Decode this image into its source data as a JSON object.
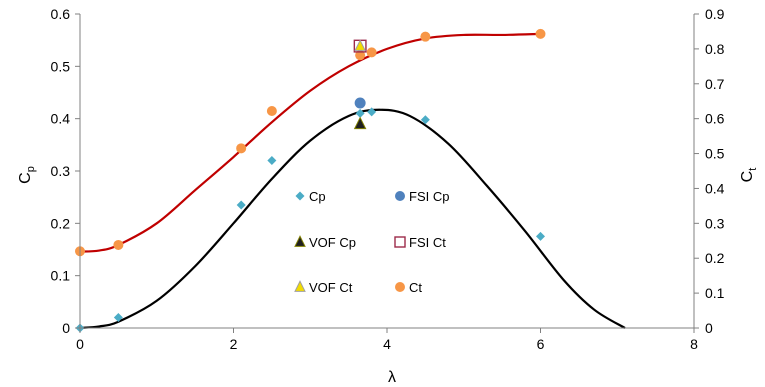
{
  "chart_data": {
    "type": "scatter",
    "xlabel": "λ",
    "ylabel_left": {
      "main": "C",
      "sub": "p"
    },
    "ylabel_right": {
      "main": "C",
      "sub": "t"
    },
    "xlim": [
      0,
      8
    ],
    "xticks": [
      "0",
      "2",
      "4",
      "6",
      "8"
    ],
    "ylim_left": [
      0,
      0.6
    ],
    "yticks_left": [
      "0",
      "0.1",
      "0.2",
      "0.3",
      "0.4",
      "0.5",
      "0.6"
    ],
    "ylim_right": [
      0,
      0.9
    ],
    "yticks_right": [
      "0",
      "0.1",
      "0.2",
      "0.3",
      "0.4",
      "0.5",
      "0.6",
      "0.7",
      "0.8",
      "0.9"
    ],
    "grid": false,
    "legend_position": "center",
    "series": [
      {
        "name": "Cp",
        "axis": "left",
        "marker": "diamond",
        "color": "#4BACC6",
        "x": [
          0,
          0.5,
          2.1,
          2.5,
          3.65,
          3.8,
          4.5,
          6.0
        ],
        "y": [
          0,
          0.02,
          0.235,
          0.32,
          0.41,
          0.413,
          0.398,
          0.175
        ]
      },
      {
        "name": "FSI Cp",
        "axis": "left",
        "marker": "circle",
        "color": "#4F81BD",
        "x": [
          3.65
        ],
        "y": [
          0.43
        ]
      },
      {
        "name": "VOF Cp",
        "axis": "left",
        "marker": "triangle",
        "color": "#1F1F1F",
        "x": [
          3.65
        ],
        "y": [
          0.39
        ]
      },
      {
        "name": "FSI Ct",
        "axis": "right",
        "marker": "square",
        "color": "#9C2A4A",
        "x": [
          3.65
        ],
        "y": [
          0.808
        ]
      },
      {
        "name": "VOF Ct",
        "axis": "right",
        "marker": "triangle",
        "color": "#F2DC00",
        "x": [
          3.65
        ],
        "y": [
          0.808
        ]
      },
      {
        "name": "Ct",
        "axis": "right",
        "marker": "circle",
        "color": "#F79646",
        "x": [
          0,
          0.5,
          2.1,
          2.5,
          3.65,
          3.8,
          4.5,
          6.0
        ],
        "y": [
          0.22,
          0.238,
          0.515,
          0.622,
          0.782,
          0.79,
          0.835,
          0.843
        ]
      }
    ],
    "curves": [
      {
        "name": "Cp fit",
        "axis": "left",
        "color": "#000000",
        "x": [
          0,
          0.25,
          0.5,
          1.0,
          1.5,
          2.0,
          2.5,
          3.0,
          3.5,
          3.9,
          4.3,
          4.8,
          5.3,
          5.8,
          6.3,
          6.7,
          7.1
        ],
        "y": [
          0,
          0.003,
          0.012,
          0.052,
          0.118,
          0.2,
          0.285,
          0.358,
          0.405,
          0.417,
          0.405,
          0.352,
          0.272,
          0.185,
          0.092,
          0.035,
          0
        ]
      },
      {
        "name": "Ct fit",
        "axis": "right",
        "color": "#C00000",
        "x": [
          0,
          0.25,
          0.5,
          1.0,
          1.5,
          2.0,
          2.5,
          3.0,
          3.5,
          4.0,
          4.5,
          5.0,
          5.5,
          6.0
        ],
        "y": [
          0.219,
          0.222,
          0.238,
          0.3,
          0.395,
          0.49,
          0.59,
          0.68,
          0.75,
          0.8,
          0.83,
          0.84,
          0.84,
          0.843
        ]
      }
    ]
  }
}
